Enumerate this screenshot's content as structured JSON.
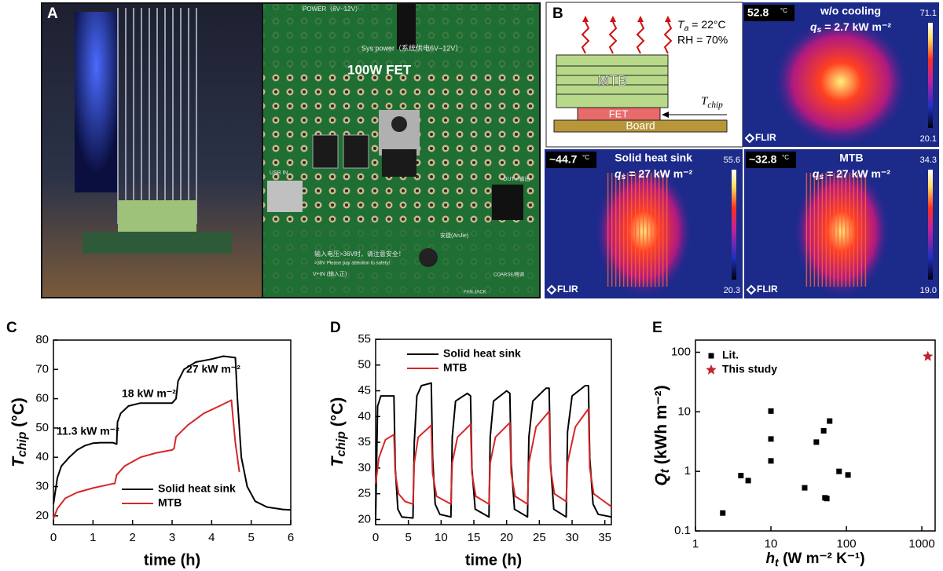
{
  "figure": {
    "panel_labels": [
      "A",
      "B",
      "C",
      "D",
      "E"
    ],
    "photo_a": {
      "fet_label": "100W FET",
      "sys_power": "Sys power（系统供电6V~12V）",
      "power": "POWER（6V~12V）",
      "usb_in": "USB IN",
      "out": "OUT / 输出",
      "warning_cn": "输入电压>36V时，请注意安全！",
      "warning_en": ">36V Please pay attention to safety!",
      "vin": "V+IN (输入正)",
      "brand": "安捷(AnJie)",
      "fan_jack": "FAN JACK",
      "coarse": "COARSE/粗调"
    },
    "schematic": {
      "ta_symbol": "T",
      "ta_sub": "a",
      "ta_value": " = 22°C",
      "rh": "RH = 70%",
      "block_top": "MTB",
      "block_mid": "FET",
      "block_bottom": "Board",
      "tchip_symbol": "T",
      "tchip_sub": "chip"
    },
    "thermal": [
      {
        "max_temp": "52.8",
        "unit": "°C",
        "title": "w/o cooling",
        "flux_symbol": "q",
        "flux_sub": "s",
        "flux_value": " = 2.7 kW m⁻²",
        "scale_max": "71.1",
        "scale_min": "20.1",
        "brand": "FLIR"
      },
      {
        "max_temp": "~44.7",
        "unit": "°C",
        "title": "Solid heat sink",
        "flux_symbol": "q",
        "flux_sub": "s",
        "flux_value": " = 27 kW m⁻²",
        "scale_max": "55.6",
        "scale_min": "20.3",
        "brand": "FLIR"
      },
      {
        "max_temp": "~32.8",
        "unit": "°C",
        "title": "MTB",
        "flux_symbol": "q",
        "flux_sub": "s",
        "flux_value": " = 27 kW m⁻²",
        "scale_max": "34.3",
        "scale_min": "19.0",
        "brand": "FLIR"
      }
    ]
  },
  "chart_data": [
    {
      "type": "line",
      "xlabel": "time (h)",
      "ylabel": {
        "main": "T",
        "sub": "chip",
        "unit": " (°C)"
      },
      "xlim": [
        0,
        6
      ],
      "xticks": [
        0,
        1,
        2,
        3,
        4,
        5,
        6
      ],
      "ylim": [
        17,
        80
      ],
      "yticks": [
        20,
        30,
        40,
        50,
        60,
        70,
        80
      ],
      "legend": "lower left",
      "annotations": [
        "11.3 kW m⁻²",
        "18 kW m⁻²",
        "27 kW m⁻²"
      ],
      "series": [
        {
          "name": "Solid heat sink",
          "color": "#000000",
          "x": [
            0,
            0.1,
            0.2,
            0.4,
            0.6,
            0.8,
            1.0,
            1.2,
            1.5,
            1.6,
            1.62,
            1.7,
            1.9,
            2.2,
            2.6,
            3.0,
            3.1,
            3.15,
            3.3,
            3.6,
            4.0,
            4.3,
            4.6,
            4.65,
            4.75,
            4.9,
            5.1,
            5.4,
            5.8,
            6
          ],
          "y": [
            24,
            33,
            37,
            40,
            42.5,
            44,
            44.8,
            45,
            45,
            44.5,
            52,
            55,
            57.5,
            58.5,
            58.5,
            58.5,
            60,
            66,
            70,
            72.5,
            73.5,
            74.5,
            74,
            60,
            40,
            30,
            25,
            23,
            22.2,
            22
          ]
        },
        {
          "name": "MTB",
          "color": "#d62728",
          "x": [
            0,
            0.1,
            0.3,
            0.6,
            1.0,
            1.5,
            1.55,
            1.6,
            1.8,
            2.2,
            2.6,
            3.0,
            3.05,
            3.1,
            3.4,
            3.8,
            4.2,
            4.5,
            4.55,
            4.6,
            4.7
          ],
          "y": [
            19,
            22.5,
            26,
            28,
            29.5,
            31,
            31,
            34,
            37,
            40,
            41.5,
            42.5,
            43,
            47,
            51,
            55,
            57.5,
            59.5,
            52,
            45,
            35
          ]
        }
      ]
    },
    {
      "type": "line",
      "xlabel": "time (h)",
      "ylabel": {
        "main": "T",
        "sub": "chip",
        "unit": " (°C)"
      },
      "xlim": [
        0,
        36
      ],
      "xticks": [
        0,
        5,
        10,
        15,
        20,
        25,
        30,
        35
      ],
      "ylim": [
        19,
        55
      ],
      "yticks": [
        20,
        25,
        30,
        35,
        40,
        45,
        50,
        55
      ],
      "legend": "upper left",
      "series": [
        {
          "name": "Solid heat sink",
          "color": "#000000",
          "x": [
            0,
            0.3,
            0.8,
            2.8,
            3.0,
            3.4,
            4,
            5.7,
            5.9,
            6.3,
            7,
            8.5,
            8.7,
            9.1,
            9.8,
            11.5,
            11.7,
            12.2,
            14,
            14.5,
            14.7,
            15.2,
            17.3,
            17.5,
            18,
            20,
            20.5,
            20.7,
            21.2,
            23.2,
            23.4,
            24,
            26,
            26.5,
            26.7,
            27.2,
            29.1,
            29.3,
            30,
            32,
            32.5,
            32.7,
            33.2,
            34,
            36
          ],
          "y": [
            20,
            42,
            44,
            44,
            30,
            22,
            20.5,
            20.3,
            35,
            44,
            46,
            46.5,
            32,
            23,
            21,
            20.5,
            36,
            43,
            44.5,
            44,
            30,
            22,
            20.5,
            36,
            43,
            45,
            44.5,
            31,
            22,
            20.5,
            36,
            43,
            45.5,
            45.5,
            31,
            22,
            20.5,
            37,
            44,
            46,
            46,
            32,
            23,
            21,
            20.5
          ]
        },
        {
          "name": "MTB",
          "color": "#d62728",
          "x": [
            0,
            0.5,
            1.5,
            2.8,
            3.0,
            3.5,
            4.5,
            5.7,
            5.9,
            6.5,
            8.5,
            8.7,
            9.3,
            11.5,
            11.7,
            12.5,
            14.5,
            14.7,
            15.3,
            17.3,
            17.5,
            18.3,
            20.5,
            20.7,
            21.3,
            23.2,
            23.4,
            24.5,
            26.5,
            26.7,
            27.3,
            29.1,
            29.3,
            30.5,
            32.5,
            32.7,
            33.3,
            36
          ],
          "y": [
            27,
            32,
            35.5,
            36.5,
            29,
            25,
            23.5,
            23,
            31,
            36,
            38.3,
            29,
            24.5,
            23,
            31,
            36,
            38.5,
            29,
            24.5,
            23,
            31,
            36,
            38.8,
            29,
            24.5,
            23,
            31,
            38,
            41,
            30,
            25,
            23.5,
            31,
            38,
            41.5,
            30,
            25,
            22.5
          ]
        }
      ]
    },
    {
      "type": "scatter",
      "xlabel": {
        "main": "h",
        "sub": "t",
        "unit": " (W m⁻² K⁻¹)"
      },
      "ylabel": {
        "main": "Q",
        "sub": "t",
        "unit": " (kWh m⁻²)"
      },
      "xscale": "log",
      "yscale": "log",
      "xlim": [
        1,
        1500
      ],
      "xticks": [
        1,
        10,
        100,
        1000
      ],
      "ylim": [
        0.1,
        160
      ],
      "yticks": [
        0.1,
        1,
        10,
        100
      ],
      "legend": "upper left",
      "series": [
        {
          "name": "Lit.",
          "color": "#000000",
          "marker": "square",
          "x": [
            2.3,
            4,
            5,
            10,
            10,
            10,
            28,
            40,
            50,
            52,
            55,
            60,
            80,
            105
          ],
          "y": [
            0.2,
            0.85,
            0.7,
            10.3,
            3.5,
            1.5,
            0.53,
            3.1,
            4.8,
            0.36,
            0.35,
            7,
            1,
            0.87
          ]
        },
        {
          "name": "This study",
          "color": "#c0272d",
          "marker": "star",
          "x": [
            1200
          ],
          "y": [
            85
          ]
        }
      ]
    }
  ]
}
